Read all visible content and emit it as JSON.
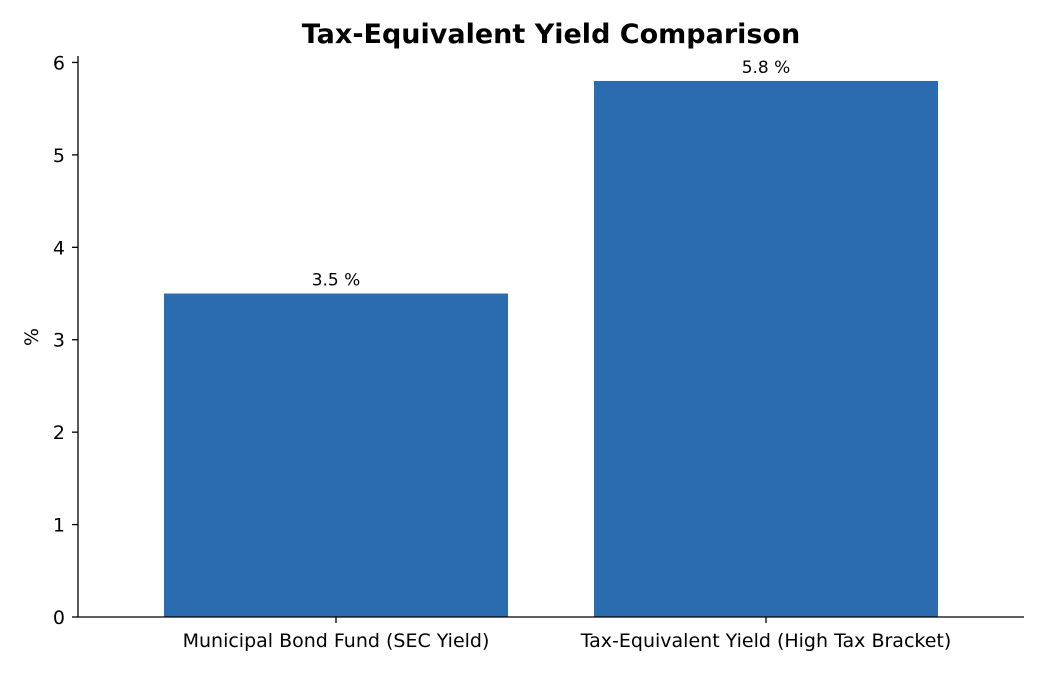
{
  "chart_data": {
    "type": "bar",
    "title": "Tax-Equivalent Yield Comparison",
    "xlabel": "",
    "ylabel": "%",
    "categories": [
      "Municipal Bond Fund (SEC Yield)",
      "Tax-Equivalent Yield (High Tax Bracket)"
    ],
    "values": [
      3.5,
      5.8
    ],
    "data_labels": [
      "3.5 %",
      "5.8 %"
    ],
    "ylim": [
      0,
      6.07
    ],
    "yticks": [
      0,
      1,
      2,
      3,
      4,
      5,
      6
    ],
    "ytick_labels": [
      "0",
      "1",
      "2",
      "3",
      "4",
      "5",
      "6"
    ],
    "grid": false,
    "legend": "none",
    "bar_color": "#2b6cb0"
  }
}
